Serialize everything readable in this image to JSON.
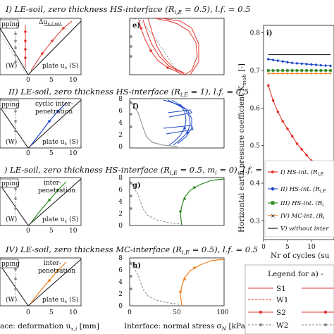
{
  "rows": [
    {
      "title": "I) LE-soil, zero thickness HS-interface (R",
      "title_sub": "i,E",
      "title_rest": " = 0.5), l.f. = 0.5",
      "left_labels": {
        "top": "pping",
        "bottom": "(W)",
        "plate": "plate u",
        "plate_sub": "x",
        "plate_tail": " (S)",
        "extra": "Δu",
        "extra_sub": "x,i,rel"
      },
      "panel_letter": "e)",
      "color": "#e0342c"
    },
    {
      "title": "II) LE-soil, zero thickness HS-interface (R",
      "title_sub": "i,E",
      "title_rest": " = 1), l.f. = 0.5",
      "left_labels": {
        "top": "pping",
        "bottom": "(W)",
        "plate": "plate u",
        "plate_sub": "x",
        "plate_tail": " (S)",
        "extra": "cyclic inter-",
        "extra2": "penetration"
      },
      "panel_letter": "f)",
      "color": "#1f47c8"
    },
    {
      "title": ") LE-soil, zero thickness HS-interface (R",
      "title_sub": "i,E",
      "title_rest": " = 0.5, m",
      "title_sub2": "i",
      "title_rest2": " = 0), l.f. = 0.5",
      "left_labels": {
        "top": "pping",
        "bottom": "(W)",
        "plate": "plate u",
        "plate_sub": "x",
        "plate_tail": " (S)",
        "extra": "inter-",
        "extra2": "penetration"
      },
      "panel_letter": "g)",
      "color": "#2e8b22"
    },
    {
      "title": "IV) LE-soil, zero thickness MC-interface (R",
      "title_sub": "i,E",
      "title_rest": " = 0.5), l.f. = 0.5",
      "left_labels": {
        "top": "pping",
        "bottom": "(W)",
        "plate": "plate u",
        "plate_sub": "x",
        "plate_tail": " (S)",
        "extra": "inter-",
        "extra2": "penetration"
      },
      "panel_letter": "h)",
      "color": "#f07f1c"
    }
  ],
  "left_axis": {
    "ticks": [
      "0",
      "5",
      "10"
    ],
    "xlabel": "ace: deformation u",
    "xlabel_sub": "x,i",
    "xlabel_unit": " [mm]"
  },
  "mid_axis": {
    "yticks": [
      "0",
      "2",
      "4",
      "6",
      "8"
    ],
    "xticks": [
      "0",
      "50",
      "100"
    ],
    "xlabel": "Interface: normal stress σ",
    "xlabel_sub": "N",
    "xlabel_unit": " [kPa]"
  },
  "chart_data": [
    {
      "type": "line",
      "panel": "i)",
      "title": "",
      "xlabel": "Nr of cycles (su",
      "ylabel": "Horizontal earth pressure coefficient K",
      "ylabel_sub": "mob",
      "ylabel_unit": " [-]",
      "xlim": [
        0,
        14
      ],
      "ylim": [
        0.25,
        0.82
      ],
      "xticks": [
        0,
        5,
        10
      ],
      "xtick_labels": [
        "0",
        "5",
        "10"
      ],
      "yticks": [
        0.3,
        0.4,
        0.5,
        0.6,
        0.7,
        0.8
      ],
      "ytick_labels": [
        "0.3",
        "0.4",
        "0.5",
        "0.6",
        "0.7",
        "0.8"
      ],
      "series": [
        {
          "name": "I) HS-int. (R",
          "name_tail": "i,E",
          "name_rest": "",
          "color": "#e0342c",
          "x": [
            1,
            2,
            3,
            4,
            5,
            6,
            7,
            8,
            9,
            10,
            11,
            12,
            13,
            14
          ],
          "values": [
            0.66,
            0.62,
            0.59,
            0.565,
            0.545,
            0.525,
            0.505,
            0.49,
            0.475,
            0.46,
            0.445,
            0.43,
            0.415,
            0.4
          ]
        },
        {
          "name": "II) HS-int. (R",
          "name_tail": "i,E",
          "name_rest": "",
          "color": "#1f47c8",
          "x": [
            1,
            2,
            3,
            4,
            5,
            6,
            7,
            8,
            9,
            10,
            11,
            12,
            13,
            14
          ],
          "values": [
            0.73,
            0.728,
            0.726,
            0.724,
            0.722,
            0.72,
            0.719,
            0.718,
            0.717,
            0.716,
            0.715,
            0.714,
            0.713,
            0.712
          ]
        },
        {
          "name": "III) HS-int. (R",
          "name_tail": "i",
          "name_rest": "",
          "color": "#2e8b22",
          "x": [
            1,
            2,
            3,
            4,
            5,
            6,
            7,
            8,
            9,
            10,
            11,
            12,
            13,
            14
          ],
          "values": [
            0.7,
            0.7,
            0.7,
            0.7,
            0.7,
            0.7,
            0.7,
            0.7,
            0.7,
            0.7,
            0.7,
            0.7,
            0.7,
            0.7
          ]
        },
        {
          "name": "IV) MC-int. (R",
          "name_tail": "i",
          "name_rest": "",
          "color": "#f07f1c",
          "x": [
            1,
            2,
            3,
            4,
            5,
            6,
            7,
            8,
            9,
            10,
            11,
            12,
            13,
            14
          ],
          "values": [
            0.692,
            0.692,
            0.692,
            0.692,
            0.692,
            0.692,
            0.692,
            0.692,
            0.692,
            0.692,
            0.692,
            0.692,
            0.692,
            0.692
          ]
        },
        {
          "name": "V) without inter",
          "name_tail": "",
          "name_rest": "",
          "color": "#222222",
          "x": [
            1,
            14
          ],
          "values": [
            0.742,
            0.742
          ]
        }
      ]
    }
  ],
  "bottom_legend": {
    "title": "Legend for a) -",
    "items": [
      {
        "label": "S1",
        "color": "#e0342c",
        "dash": "solid",
        "marker": false
      },
      {
        "label": "W1",
        "color": "#e0342c",
        "dash": "dashed",
        "marker": false
      },
      {
        "label": "S2",
        "color": "#e0342c",
        "dash": "solid",
        "marker": true
      },
      {
        "label": "W2",
        "color": "#888888",
        "dash": "dashed",
        "marker": true
      }
    ]
  }
}
